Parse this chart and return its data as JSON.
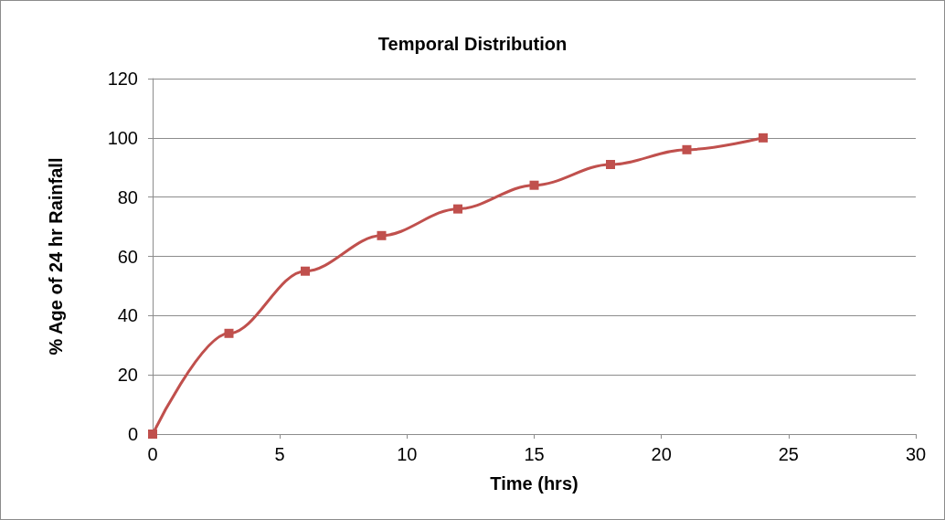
{
  "chart_data": {
    "type": "line",
    "title": "Temporal Distribution",
    "xlabel": "Time (hrs)",
    "ylabel": "% Age of 24 hr Rainfall",
    "x": [
      0,
      3,
      6,
      9,
      12,
      15,
      18,
      21,
      24
    ],
    "series": [
      {
        "color": "#c0504d",
        "values": [
          0,
          34,
          55,
          67,
          76,
          84,
          91,
          96,
          100
        ]
      }
    ],
    "xlim": [
      0,
      30
    ],
    "xticks": [
      0,
      5,
      10,
      15,
      20,
      25,
      30
    ],
    "ylim": [
      0,
      120
    ],
    "yticks": [
      0,
      20,
      40,
      60,
      80,
      100,
      120
    ],
    "grid": "y",
    "marker": "square",
    "line_style": "solid"
  }
}
